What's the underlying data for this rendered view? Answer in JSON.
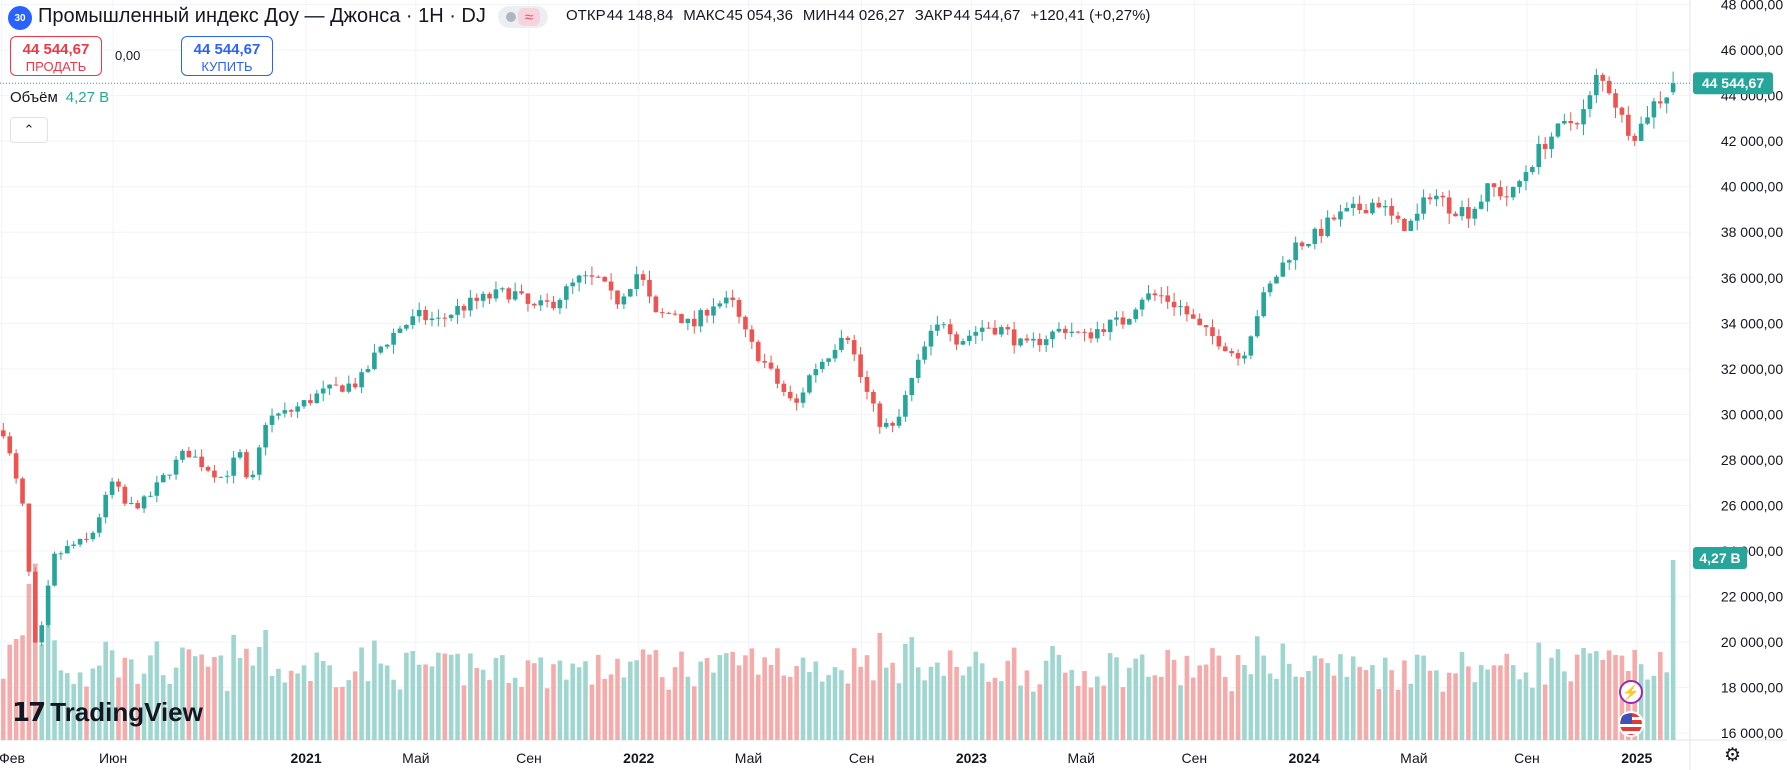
{
  "header": {
    "symbol_badge": "30",
    "title": "Промышленный индекс Доу — Джонса · 1Н · DJ",
    "ohlc": [
      {
        "key": "ОТКР",
        "value": "44 148,84"
      },
      {
        "key": "МАКС",
        "value": "45 054,36"
      },
      {
        "key": "МИН",
        "value": "44 026,27"
      },
      {
        "key": "ЗАКР",
        "value": "44 544,67"
      }
    ],
    "change": "+120,41 (+0,27%)",
    "indicator_icons": [
      "dot-icon",
      "wave-icon"
    ]
  },
  "trade": {
    "sell_price": "44 544,67",
    "sell_label": "ПРОДАТЬ",
    "spread": "0,00",
    "buy_price": "44 544,67",
    "buy_label": "КУПИТЬ"
  },
  "volume_legend": {
    "label": "Объём",
    "value": "4,27 B"
  },
  "collapse_icon": "chevron-up-icon",
  "logo": {
    "mark": "17",
    "name": "TradingView"
  },
  "colors": {
    "up": "#26a69a",
    "down": "#ef5350",
    "vol_up": "#9fd6d0",
    "vol_down": "#f6abab",
    "last_price_label": "#26a69a",
    "volume_label": "#26a69a"
  },
  "chart_data": {
    "type": "candlestick",
    "timeframe": "1W",
    "price_axis": {
      "ticks": [
        16000,
        18000,
        20000,
        22000,
        24000,
        26000,
        28000,
        30000,
        32000,
        34000,
        36000,
        38000,
        40000,
        42000,
        44000,
        46000,
        48000
      ],
      "tick_labels": [
        "16 000,00",
        "18 000,00",
        "20 000,00",
        "22 000,00",
        "24 000,00",
        "26 000,00",
        "28 000,00",
        "30 000,00",
        "32 000,00",
        "34 000,00",
        "36 000,00",
        "38 000,00",
        "40 000,00",
        "42 000,00",
        "44 000,00",
        "46 000,00",
        "48 000,00"
      ],
      "range": [
        15700,
        48200
      ]
    },
    "time_axis": {
      "labels": [
        {
          "t": 2020.085,
          "label": "Фев",
          "bold": false
        },
        {
          "t": 2020.42,
          "label": "Июн",
          "bold": false
        },
        {
          "t": 2021.0,
          "label": "2021",
          "bold": true
        },
        {
          "t": 2021.33,
          "label": "Май",
          "bold": false
        },
        {
          "t": 2021.67,
          "label": "Сен",
          "bold": false
        },
        {
          "t": 2022.0,
          "label": "2022",
          "bold": true
        },
        {
          "t": 2022.33,
          "label": "Май",
          "bold": false
        },
        {
          "t": 2022.67,
          "label": "Сен",
          "bold": false
        },
        {
          "t": 2023.0,
          "label": "2023",
          "bold": true
        },
        {
          "t": 2023.33,
          "label": "Май",
          "bold": false
        },
        {
          "t": 2023.67,
          "label": "Сен",
          "bold": false
        },
        {
          "t": 2024.0,
          "label": "2024",
          "bold": true
        },
        {
          "t": 2024.33,
          "label": "Май",
          "bold": false
        },
        {
          "t": 2024.67,
          "label": "Сен",
          "bold": false
        },
        {
          "t": 2025.0,
          "label": "2025",
          "bold": true
        }
      ],
      "range": [
        2020.08,
        2025.16
      ]
    },
    "last_price": {
      "value": 44544.67,
      "label": "44 544,67"
    },
    "last_volume": {
      "label": "4,27 B"
    },
    "close_path": [
      [
        2020.09,
        29300
      ],
      [
        2020.15,
        25800
      ],
      [
        2020.19,
        19200
      ],
      [
        2020.24,
        23700
      ],
      [
        2020.29,
        24200
      ],
      [
        2020.35,
        24500
      ],
      [
        2020.42,
        27100
      ],
      [
        2020.46,
        25900
      ],
      [
        2020.52,
        26200
      ],
      [
        2020.58,
        27400
      ],
      [
        2020.64,
        28400
      ],
      [
        2020.69,
        27800
      ],
      [
        2020.75,
        27200
      ],
      [
        2020.8,
        28300
      ],
      [
        2020.83,
        26500
      ],
      [
        2020.88,
        29800
      ],
      [
        2020.95,
        30100
      ],
      [
        2021.04,
        30900
      ],
      [
        2021.1,
        31200
      ],
      [
        2021.16,
        31400
      ],
      [
        2021.22,
        32900
      ],
      [
        2021.28,
        33800
      ],
      [
        2021.34,
        34300
      ],
      [
        2021.4,
        34100
      ],
      [
        2021.45,
        34600
      ],
      [
        2021.5,
        34900
      ],
      [
        2021.56,
        35200
      ],
      [
        2021.62,
        35400
      ],
      [
        2021.68,
        34600
      ],
      [
        2021.74,
        34900
      ],
      [
        2021.82,
        35900
      ],
      [
        2021.88,
        35900
      ],
      [
        2021.93,
        34900
      ],
      [
        2022.0,
        36300
      ],
      [
        2022.05,
        34300
      ],
      [
        2022.11,
        34500
      ],
      [
        2022.16,
        33800
      ],
      [
        2022.22,
        34900
      ],
      [
        2022.28,
        34900
      ],
      [
        2022.33,
        33200
      ],
      [
        2022.38,
        32200
      ],
      [
        2022.42,
        31300
      ],
      [
        2022.47,
        30300
      ],
      [
        2022.52,
        31900
      ],
      [
        2022.58,
        32800
      ],
      [
        2022.62,
        33900
      ],
      [
        2022.67,
        31500
      ],
      [
        2022.72,
        29700
      ],
      [
        2022.77,
        29300
      ],
      [
        2022.81,
        31100
      ],
      [
        2022.87,
        33300
      ],
      [
        2022.92,
        34200
      ],
      [
        2022.96,
        33200
      ],
      [
        2023.04,
        33900
      ],
      [
        2023.1,
        33700
      ],
      [
        2023.16,
        32900
      ],
      [
        2023.22,
        33400
      ],
      [
        2023.28,
        33800
      ],
      [
        2023.34,
        33400
      ],
      [
        2023.4,
        33900
      ],
      [
        2023.46,
        34100
      ],
      [
        2023.51,
        35200
      ],
      [
        2023.57,
        35200
      ],
      [
        2023.63,
        34700
      ],
      [
        2023.69,
        33700
      ],
      [
        2023.75,
        33200
      ],
      [
        2023.81,
        32400
      ],
      [
        2023.87,
        34900
      ],
      [
        2023.92,
        36200
      ],
      [
        2023.97,
        37400
      ],
      [
        2024.03,
        37800
      ],
      [
        2024.09,
        38600
      ],
      [
        2024.16,
        39000
      ],
      [
        2024.22,
        39400
      ],
      [
        2024.28,
        38300
      ],
      [
        2024.33,
        38400
      ],
      [
        2024.38,
        39800
      ],
      [
        2024.44,
        39100
      ],
      [
        2024.5,
        38900
      ],
      [
        2024.56,
        40000
      ],
      [
        2024.62,
        39500
      ],
      [
        2024.67,
        40800
      ],
      [
        2024.73,
        42100
      ],
      [
        2024.79,
        42700
      ],
      [
        2024.85,
        43400
      ],
      [
        2024.88,
        44800
      ],
      [
        2024.92,
        44300
      ],
      [
        2024.96,
        42800
      ],
      [
        2025.0,
        42300
      ],
      [
        2025.04,
        43500
      ],
      [
        2025.09,
        44100
      ],
      [
        2025.12,
        44545
      ]
    ],
    "volume_axis_note": "volume bars on bottom pane, scale not printed"
  }
}
